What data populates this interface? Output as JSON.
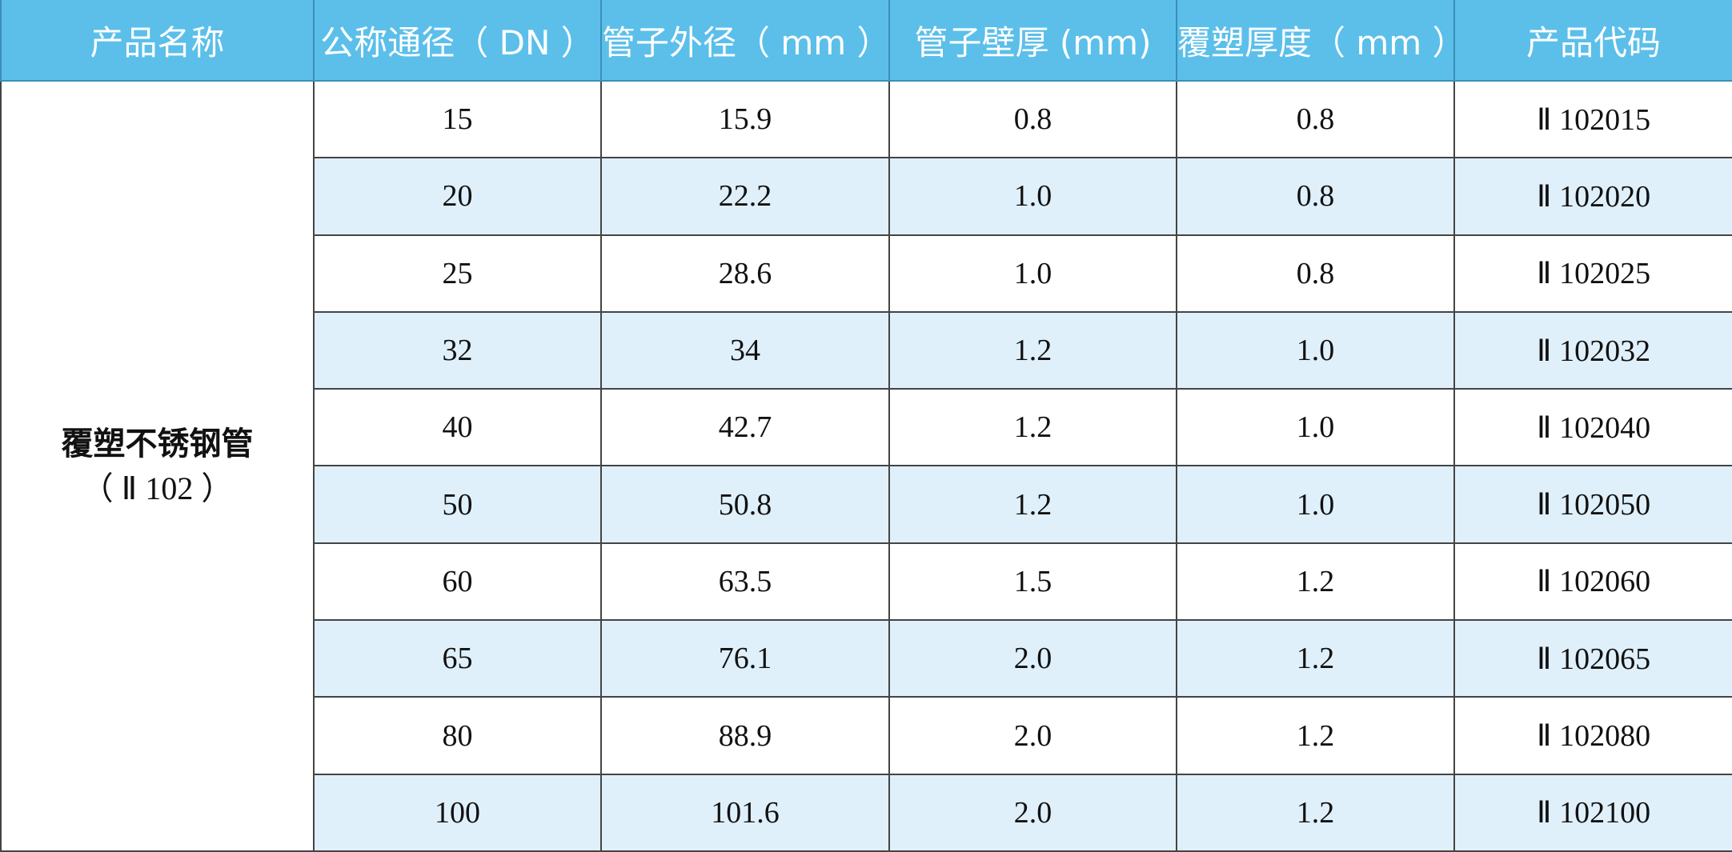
{
  "table": {
    "header": [
      "产品名称",
      "公称通径（ DN ）",
      "管子外径（ mm ）",
      "管子壁厚 (mm)",
      "覆塑厚度（ mm ）",
      "产品代码"
    ],
    "product": {
      "name": "覆塑不锈钢管",
      "code": "（ Ⅱ 102 ）"
    },
    "rows": [
      [
        "15",
        "15.9",
        "0.8",
        "0.8",
        "Ⅱ 102015"
      ],
      [
        "20",
        "22.2",
        "1.0",
        "0.8",
        "Ⅱ 102020"
      ],
      [
        "25",
        "28.6",
        "1.0",
        "0.8",
        "Ⅱ 102025"
      ],
      [
        "32",
        "34",
        "1.2",
        "1.0",
        "Ⅱ 102032"
      ],
      [
        "40",
        "42.7",
        "1.2",
        "1.0",
        "Ⅱ 102040"
      ],
      [
        "50",
        "50.8",
        "1.2",
        "1.0",
        "Ⅱ 102050"
      ],
      [
        "60",
        "63.5",
        "1.5",
        "1.2",
        "Ⅱ 102060"
      ],
      [
        "65",
        "76.1",
        "2.0",
        "1.2",
        "Ⅱ 102065"
      ],
      [
        "80",
        "88.9",
        "2.0",
        "1.2",
        "Ⅱ 102080"
      ],
      [
        "100",
        "101.6",
        "2.0",
        "1.2",
        "Ⅱ 102100"
      ]
    ]
  }
}
